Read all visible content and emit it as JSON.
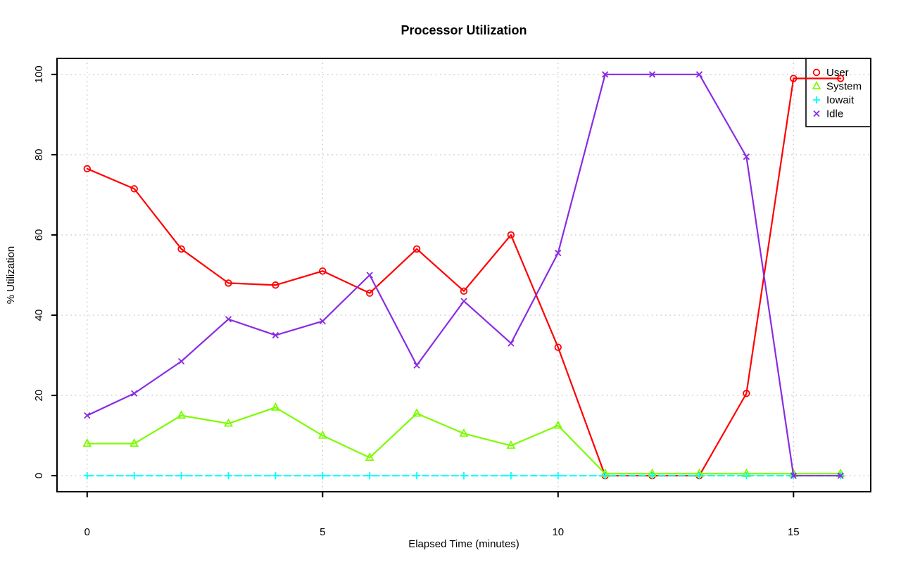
{
  "chart_data": {
    "type": "line",
    "title": "Processor Utilization",
    "xlabel": "Elapsed Time (minutes)",
    "ylabel": "% Utilization",
    "x": [
      0,
      1,
      2,
      3,
      4,
      5,
      6,
      7,
      8,
      9,
      10,
      11,
      12,
      13,
      14,
      15,
      16
    ],
    "xticks": [
      0,
      5,
      10,
      15
    ],
    "yticks": [
      0,
      20,
      40,
      60,
      80,
      100
    ],
    "xlim": [
      -0.64,
      16.64
    ],
    "ylim": [
      -4,
      104
    ],
    "grid": "dotted",
    "grid_color": "#c9c9c9",
    "legend_position": "top-right",
    "series": [
      {
        "name": "User",
        "color": "#ff0000",
        "marker": "circle",
        "dash": "solid",
        "values": [
          76.5,
          71.5,
          56.5,
          48,
          47.5,
          51,
          45.5,
          56.5,
          46,
          60,
          32,
          0,
          0,
          0,
          20.5,
          99,
          99
        ]
      },
      {
        "name": "System",
        "color": "#7cfc00",
        "marker": "triangle",
        "dash": "solid",
        "values": [
          8,
          8,
          15,
          13,
          17,
          10,
          4.5,
          15.5,
          10.5,
          7.5,
          12.5,
          0.5,
          0.5,
          0.5,
          0.5,
          0.5,
          0.5
        ]
      },
      {
        "name": "Iowait",
        "color": "#00ffff",
        "marker": "plus",
        "dash": "dashed",
        "values": [
          0,
          0,
          0,
          0,
          0,
          0,
          0,
          0,
          0,
          0,
          0,
          0,
          0,
          0,
          0,
          0,
          0
        ]
      },
      {
        "name": "Idle",
        "color": "#8a2be2",
        "marker": "x",
        "dash": "solid",
        "values": [
          15,
          20.5,
          28.5,
          39,
          35,
          38.5,
          50,
          27.5,
          43.5,
          33,
          55.5,
          100,
          100,
          100,
          79.5,
          0,
          0
        ]
      }
    ]
  }
}
